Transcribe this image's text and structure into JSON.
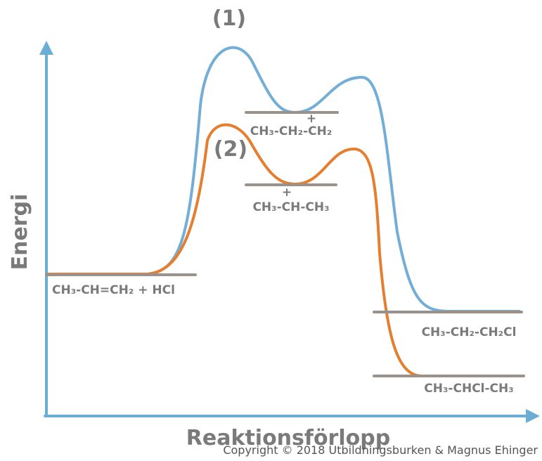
{
  "diagram": {
    "peak_labels": [
      "(1)",
      "(2)"
    ],
    "y_axis_label": "Energi",
    "x_axis_label": "Reaktionsförlopp",
    "levels": {
      "reactants": "CH₃-CH=CH₂ + HCl",
      "intermediate_1": {
        "charge": "+",
        "formula": "CH₃-CH₂-CH₂"
      },
      "intermediate_2": {
        "charge": "+",
        "formula": "CH₃-CH-CH₃"
      },
      "product_1": "CH₃-CH₂-CH₂Cl",
      "product_2": "CH₃-CHCl-CH₃"
    },
    "copyright": "Copyright © 2018 Utbildningsburken & Magnus Ehinger"
  }
}
